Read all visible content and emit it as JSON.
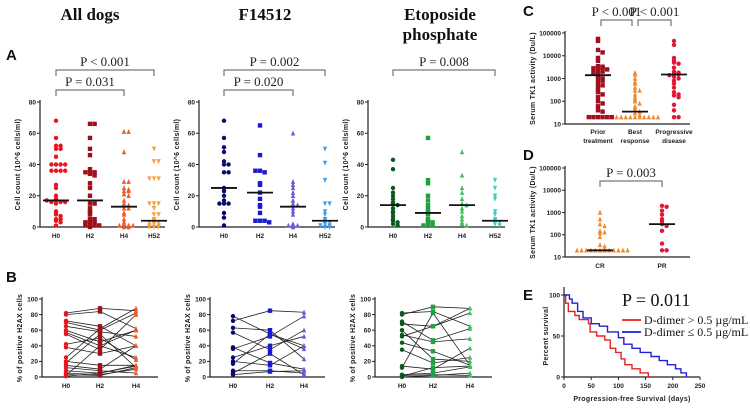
{
  "figure": {
    "panel_letters": [
      "A",
      "B",
      "C",
      "D",
      "E"
    ],
    "titles": [
      "All dogs",
      "F14512",
      "Etoposide",
      "phosphate"
    ]
  },
  "colors": {
    "all_dogs": [
      "#e8141e",
      "#a0101a",
      "#f05a28",
      "#f7a040"
    ],
    "f14512": [
      "#0a0a6e",
      "#1a1ad0",
      "#6a5ae0",
      "#40a0f0"
    ],
    "etoposide": [
      "#0a5a1e",
      "#20a040",
      "#40c060",
      "#40d0c0"
    ],
    "c": [
      "#a01020",
      "#f08a30",
      "#e01838"
    ],
    "d": [
      "#f08a30",
      "#e01838"
    ],
    "e": [
      "#e82020",
      "#2020d8"
    ]
  },
  "chart_data": [
    {
      "id": "A1",
      "type": "scatter",
      "title": "All dogs",
      "ylabel": "Cell count (10^6 cells/ml)",
      "ylim": [
        0,
        80
      ],
      "yticks": [
        "0",
        "20",
        "40",
        "60",
        "80"
      ],
      "categories": [
        "H0",
        "H2",
        "H4",
        "H52"
      ],
      "markers": [
        "circle",
        "square",
        "triangle",
        "triangle-down"
      ],
      "groups": [
        [
          68,
          57,
          52,
          52,
          50,
          50,
          45,
          40,
          40,
          40,
          40,
          36,
          36,
          36,
          36,
          27,
          25,
          20,
          18,
          17,
          16,
          16,
          16,
          17,
          15,
          10,
          9,
          8,
          7,
          5,
          5,
          4,
          3,
          1
        ],
        [
          66,
          66,
          57,
          50,
          46,
          37,
          35,
          35,
          35,
          34,
          33,
          28,
          25,
          20,
          15,
          15,
          12,
          10,
          9,
          8,
          5,
          5,
          4,
          3,
          3,
          2,
          1,
          1,
          1,
          0
        ],
        [
          61,
          61,
          48,
          29,
          29,
          25,
          24,
          23,
          23,
          21,
          20,
          17,
          15,
          14,
          12,
          12,
          9,
          8,
          5,
          3,
          2,
          1,
          1,
          1,
          0,
          0
        ],
        [
          50,
          42,
          42,
          31,
          31,
          31,
          15,
          15,
          15,
          12,
          8,
          8,
          5,
          4,
          3,
          3,
          2,
          1,
          1,
          0,
          0,
          0
        ]
      ],
      "medians": [
        17,
        17,
        13,
        4
      ],
      "comparisons": [
        {
          "from": "H0",
          "to": "H4",
          "label": "P = 0.031"
        },
        {
          "from": "H0",
          "to": "H52",
          "label": "P < 0.001"
        }
      ]
    },
    {
      "id": "A2",
      "type": "scatter",
      "title": "F14512",
      "ylabel": "Cell count (10^6 cells/ml)",
      "ylim": [
        0,
        80
      ],
      "yticks": [
        "0",
        "20",
        "40",
        "60",
        "80"
      ],
      "categories": [
        "H0",
        "H2",
        "H4",
        "H52"
      ],
      "markers": [
        "circle",
        "square",
        "triangle",
        "triangle-down"
      ],
      "groups": [
        [
          68,
          57,
          51,
          48,
          42,
          40,
          40,
          35,
          35,
          25,
          23,
          20,
          17,
          15,
          15,
          15,
          9,
          6,
          1
        ],
        [
          65,
          46,
          36,
          35,
          36,
          28,
          27,
          22,
          18,
          14,
          13,
          9,
          4,
          4,
          4,
          3
        ],
        [
          60,
          29,
          27,
          25,
          22,
          20,
          17,
          15,
          14,
          12,
          10,
          8,
          2,
          1,
          1,
          0
        ],
        [
          50,
          41,
          30,
          15,
          15,
          10,
          8,
          5,
          4,
          3,
          2,
          1,
          1,
          0,
          0
        ]
      ],
      "medians": [
        25,
        22,
        13,
        4
      ],
      "comparisons": [
        {
          "from": "H0",
          "to": "H4",
          "label": "P = 0.020"
        },
        {
          "from": "H0",
          "to": "H52",
          "label": "P = 0.002"
        }
      ]
    },
    {
      "id": "A3",
      "type": "scatter",
      "title": "Etoposide phosphate",
      "ylabel": "Cell count (10^6 cells/ml)",
      "ylim": [
        0,
        80
      ],
      "yticks": [
        "0",
        "20",
        "40",
        "60",
        "80"
      ],
      "categories": [
        "H0",
        "H2",
        "H4",
        "H52"
      ],
      "markers": [
        "circle",
        "square",
        "triangle",
        "triangle-down"
      ],
      "groups": [
        [
          43,
          37,
          25,
          22,
          20,
          18,
          16,
          15,
          14,
          12,
          10,
          9,
          7,
          5,
          4,
          3,
          2,
          1
        ],
        [
          57,
          30,
          28,
          20,
          17,
          14,
          12,
          10,
          9,
          8,
          5,
          4,
          3,
          2,
          1,
          1
        ],
        [
          48,
          33,
          25,
          22,
          18,
          15,
          14,
          12,
          10,
          7,
          5,
          3,
          2,
          1
        ],
        [
          30,
          25,
          20,
          18,
          10,
          8,
          5,
          4,
          3,
          2,
          1
        ]
      ],
      "medians": [
        14,
        9,
        14,
        4
      ],
      "comparisons": [
        {
          "from": "H0",
          "to": "H52",
          "label": "P = 0.008"
        }
      ]
    },
    {
      "id": "B1",
      "type": "line",
      "ylabel": "% of positive H2AX cells",
      "ylim": [
        0,
        100
      ],
      "yticks": [
        "0",
        "20",
        "40",
        "60",
        "80",
        "100"
      ],
      "categories": [
        "H0",
        "H2",
        "H4"
      ],
      "paired": [
        [
          82,
          88,
          85
        ],
        [
          80,
          84,
          62
        ],
        [
          72,
          65,
          40
        ],
        [
          70,
          60,
          82
        ],
        [
          65,
          58,
          52
        ],
        [
          60,
          45,
          60
        ],
        [
          57,
          40,
          25
        ],
        [
          55,
          35,
          80
        ],
        [
          42,
          50,
          22
        ],
        [
          38,
          30,
          40
        ],
        [
          25,
          62,
          88
        ],
        [
          20,
          15,
          15
        ],
        [
          18,
          55,
          12
        ],
        [
          15,
          10,
          40
        ],
        [
          12,
          8,
          5
        ],
        [
          8,
          5,
          14
        ],
        [
          5,
          3,
          10
        ],
        [
          3,
          2,
          12
        ],
        [
          2,
          40,
          60
        ],
        [
          1,
          5,
          15
        ]
      ]
    },
    {
      "id": "B2",
      "type": "line",
      "ylabel": "% of positive H2AX cells",
      "ylim": [
        0,
        100
      ],
      "yticks": [
        "0",
        "20",
        "40",
        "60",
        "80",
        "100"
      ],
      "categories": [
        "H0",
        "H2",
        "H4"
      ],
      "paired": [
        [
          78,
          55,
          40
        ],
        [
          72,
          85,
          83
        ],
        [
          63,
          60,
          23
        ],
        [
          57,
          35,
          60
        ],
        [
          38,
          18,
          10
        ],
        [
          36,
          52,
          78
        ],
        [
          25,
          40,
          52
        ],
        [
          20,
          15,
          40
        ],
        [
          17,
          55,
          36
        ],
        [
          8,
          8,
          5
        ],
        [
          5,
          30,
          3
        ],
        [
          3,
          7,
          8
        ]
      ]
    },
    {
      "id": "B3",
      "type": "line",
      "ylabel": "% of positive H2AX cells",
      "ylim": [
        0,
        100
      ],
      "yticks": [
        "0",
        "20",
        "40",
        "60",
        "80",
        "100"
      ],
      "categories": [
        "H0",
        "H2",
        "H4"
      ],
      "paired": [
        [
          82,
          84,
          65
        ],
        [
          80,
          90,
          88
        ],
        [
          71,
          47,
          62
        ],
        [
          68,
          65,
          82
        ],
        [
          60,
          23,
          20
        ],
        [
          54,
          45,
          49
        ],
        [
          52,
          65,
          88
        ],
        [
          44,
          33,
          15
        ],
        [
          35,
          18,
          25
        ],
        [
          14,
          10,
          37
        ],
        [
          12,
          82,
          15
        ],
        [
          3,
          5,
          13
        ],
        [
          2,
          3,
          2
        ],
        [
          1,
          12,
          14
        ],
        [
          0,
          2,
          5
        ]
      ]
    },
    {
      "id": "C",
      "type": "scatter",
      "ylabel": "Serum TK1 activity (Du/L)",
      "yscale": "log",
      "ylim": [
        10,
        100000
      ],
      "yticks": [
        "10",
        "100",
        "1000",
        "10000",
        "100000"
      ],
      "categories": [
        "Prior treatment",
        "Best response",
        "Progressive disease"
      ],
      "category_lines": [
        [
          "Prior",
          "treatment"
        ],
        [
          "Best",
          "response"
        ],
        [
          "Progressive",
          "disease"
        ]
      ],
      "markers": [
        "square",
        "triangle",
        "circle"
      ],
      "groups": [
        [
          55000,
          45000,
          18000,
          14000,
          8000,
          6000,
          3500,
          3300,
          3000,
          3000,
          2800,
          2500,
          2200,
          2000,
          1800,
          1500,
          1200,
          1000,
          900,
          800,
          600,
          500,
          400,
          300,
          250,
          200,
          150,
          100,
          80,
          60,
          40,
          35,
          20,
          20,
          20,
          20,
          20,
          20
        ],
        [
          1800,
          1500,
          1000,
          700,
          600,
          400,
          300,
          300,
          200,
          150,
          120,
          100,
          80,
          60,
          50,
          40,
          35,
          30,
          25,
          20,
          20,
          20,
          20,
          20,
          20,
          20,
          20,
          20,
          20
        ],
        [
          45000,
          30000,
          8000,
          6000,
          5000,
          4500,
          3000,
          2000,
          1800,
          1600,
          1500,
          1400,
          1200,
          1000,
          800,
          600,
          400,
          250,
          200,
          180,
          150,
          70,
          40,
          20,
          20
        ]
      ],
      "medians": [
        1400,
        35,
        1500
      ],
      "comparisons": [
        {
          "from": "Prior treatment",
          "to": "Best response",
          "label": "P < 0.001"
        },
        {
          "from": "Best response",
          "to": "Progressive disease",
          "label": "P < 0.001"
        }
      ]
    },
    {
      "id": "D",
      "type": "scatter",
      "ylabel": "Serum TK1 activity (Du/L)",
      "yscale": "log",
      "ylim": [
        10,
        100000
      ],
      "yticks": [
        "10",
        "100",
        "1000",
        "10000",
        "100000"
      ],
      "categories": [
        "CR",
        "PR"
      ],
      "markers": [
        "triangle",
        "circle"
      ],
      "groups": [
        [
          1000,
          500,
          300,
          250,
          150,
          130,
          120,
          80,
          35,
          30,
          20,
          20,
          20,
          20,
          20,
          20,
          20,
          20,
          20,
          20,
          20,
          20
        ],
        [
          2000,
          1800,
          1200,
          800,
          500,
          400,
          300,
          250,
          150,
          40,
          20,
          20
        ]
      ],
      "medians": [
        20,
        300
      ],
      "comparisons": [
        {
          "from": "CR",
          "to": "PR",
          "label": "P = 0.003"
        }
      ]
    },
    {
      "id": "E",
      "type": "line",
      "xlabel": "Progression-free Survival (days)",
      "ylabel": "Percent survival",
      "xlim": [
        0,
        250
      ],
      "ylim": [
        0,
        100
      ],
      "xticks": [
        "0",
        "50",
        "100",
        "150",
        "200",
        "250"
      ],
      "yticks": [
        "0",
        "50",
        "100"
      ],
      "annotation": "P = 0.011",
      "series": [
        {
          "name": "D-dimer > 0.5  µg/mL",
          "steps": [
            [
              0,
              100
            ],
            [
              3,
              90
            ],
            [
              8,
              80
            ],
            [
              20,
              75
            ],
            [
              28,
              70
            ],
            [
              45,
              65
            ],
            [
              48,
              55
            ],
            [
              60,
              50
            ],
            [
              75,
              45
            ],
            [
              85,
              35
            ],
            [
              95,
              30
            ],
            [
              105,
              22
            ],
            [
              112,
              15
            ],
            [
              125,
              10
            ],
            [
              140,
              5
            ],
            [
              155,
              0
            ]
          ]
        },
        {
          "name": "D-dimer ≤ 0.5  µg/mL",
          "steps": [
            [
              0,
              100
            ],
            [
              10,
              95
            ],
            [
              15,
              90
            ],
            [
              25,
              80
            ],
            [
              35,
              72
            ],
            [
              50,
              65
            ],
            [
              65,
              62
            ],
            [
              80,
              55
            ],
            [
              100,
              48
            ],
            [
              110,
              40
            ],
            [
              125,
              35
            ],
            [
              140,
              30
            ],
            [
              160,
              25
            ],
            [
              175,
              20
            ],
            [
              190,
              15
            ],
            [
              205,
              10
            ],
            [
              215,
              5
            ],
            [
              225,
              0
            ]
          ]
        }
      ]
    }
  ]
}
